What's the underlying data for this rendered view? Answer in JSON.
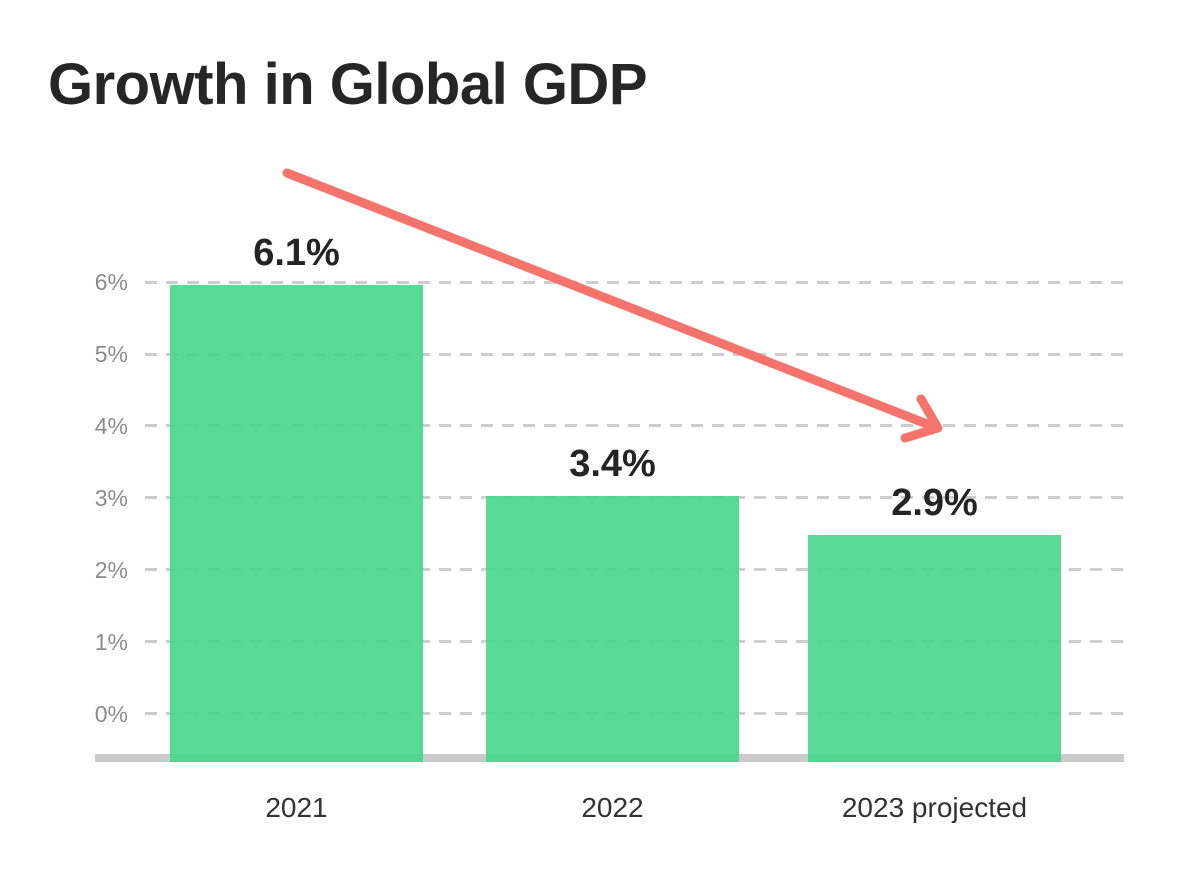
{
  "chart_data": {
    "type": "bar",
    "title": "Growth in Global GDP",
    "categories": [
      "2021",
      "2022",
      "2023 projected"
    ],
    "values": [
      6.1,
      3.4,
      2.9
    ],
    "value_labels": [
      "6.1%",
      "3.4%",
      "2.9%"
    ],
    "y_ticks": [
      "6%",
      "5%",
      "4%",
      "3%",
      "2%",
      "1%",
      "0%"
    ],
    "y_tick_values": [
      6,
      5,
      4,
      3,
      2,
      1,
      0
    ],
    "ylim": [
      0,
      6
    ],
    "xlabel": "",
    "ylabel": "",
    "grid": "horizontal-dashed",
    "legend": "none",
    "annotations": [
      {
        "type": "arrow",
        "description": "downward trend arrow from upper left to right",
        "color": "#F4736B"
      }
    ],
    "colors": {
      "bar": "#5ADB98",
      "gridline": "#CDCDCD",
      "baseline": "#CACACA",
      "tick_label": "#8C8C8C",
      "value_label": "#242424",
      "category_label": "#333333",
      "title": "#262626",
      "arrow": "#F4736B"
    }
  }
}
